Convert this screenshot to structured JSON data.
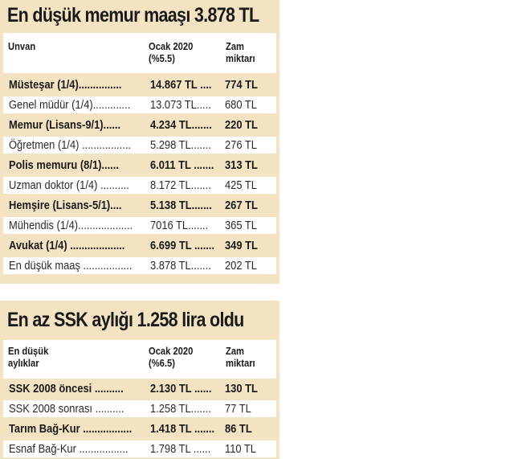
{
  "memur": {
    "title": "En düşük memur maaşı 3.878 TL",
    "headers": {
      "c1": "Unvan",
      "c2": "Ocak 2020\n(%5.5)",
      "c3": "Zam\nmiktarı"
    },
    "rows": [
      {
        "label": "Müsteşar (1/4)...............",
        "value": "14.867 TL ....",
        "zam": "774 TL"
      },
      {
        "label": "Genel müdür (1/4).............",
        "value": "13.073 TL.....",
        "zam": "680 TL"
      },
      {
        "label": "Memur (Lisans-9/1)......",
        "value": "4.234 TL.......",
        "zam": "220 TL"
      },
      {
        "label": "Öğretmen (1/4) .................",
        "value": "5.298 TL.......",
        "zam": "276 TL"
      },
      {
        "label": "Polis memuru (8/1)......",
        "value": "6.011 TL .......",
        "zam": "313 TL"
      },
      {
        "label": "Uzman doktor (1/4) ..........",
        "value": "8.172 TL.......",
        "zam": "425 TL"
      },
      {
        "label": "Hemşire (Lisans-5/1)....",
        "value": "5.138 TL.......",
        "zam": "267 TL"
      },
      {
        "label": "Mühendis (1/4)...................",
        "value": "7016 TL.......",
        "zam": "365 TL"
      },
      {
        "label": "Avukat (1/4) ...................",
        "value": "6.699 TL .......",
        "zam": "349 TL"
      },
      {
        "label": "En düşük maaş .................",
        "value": "3.878 TL.......",
        "zam": "202 TL"
      }
    ]
  },
  "ssk": {
    "title": "En az SSK aylığı 1.258 lira oldu",
    "headers": {
      "c1": "En düşük\naylıklar",
      "c2": "Ocak 2020\n(%6.5)",
      "c3": "Zam\nmiktarı"
    },
    "rows": [
      {
        "label": "SSK 2008 öncesi ..........",
        "value": "2.130 TL ......",
        "zam": "130 TL"
      },
      {
        "label": "SSK 2008 sonrası ..........",
        "value": "1.258 TL.......",
        "zam": "77 TL"
      },
      {
        "label": "Tarım Bağ-Kur .................",
        "value": "1.418 TL .......",
        "zam": "86 TL"
      },
      {
        "label": "Esnaf Bağ-Kur .................",
        "value": "1.798 TL ......",
        "zam": "110 TL"
      }
    ]
  }
}
